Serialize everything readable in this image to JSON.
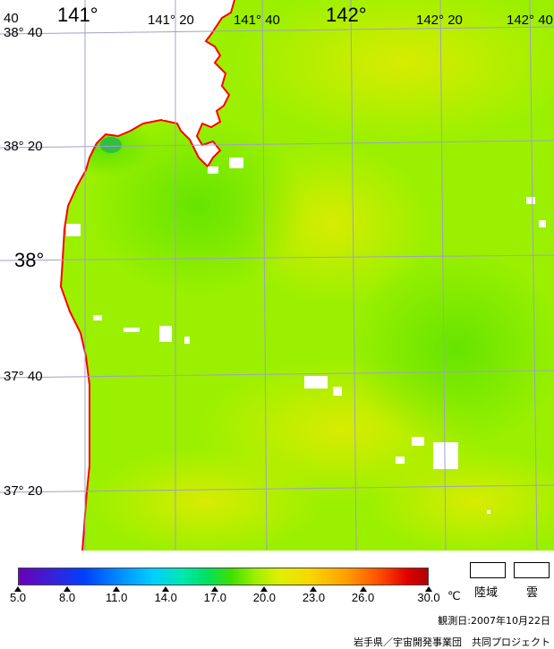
{
  "map": {
    "lon_labels": [
      "141°",
      "141° 20",
      "141° 40",
      "142°",
      "142° 20",
      "142° 40"
    ],
    "lat_labels": [
      "38° 40",
      "38° 20",
      "38°",
      "37° 40",
      "37° 20"
    ],
    "colors": {
      "sea": "#9af000",
      "coast": "#ff0000",
      "grid": "#a0a0c8",
      "land": "#ffffff",
      "cloud": "#ffffff"
    }
  },
  "legend": {
    "ticks": [
      "5.0",
      "8.0",
      "11.0",
      "14.0",
      "17.0",
      "20.0",
      "23.0",
      "26.0",
      "30.0"
    ],
    "unit": "℃",
    "land_label": "陸域",
    "cloud_label": "雲"
  },
  "observation_date": "観測日:2007年10月22日",
  "credit": "岩手県／宇宙開発事業団　共同プロジェクト"
}
